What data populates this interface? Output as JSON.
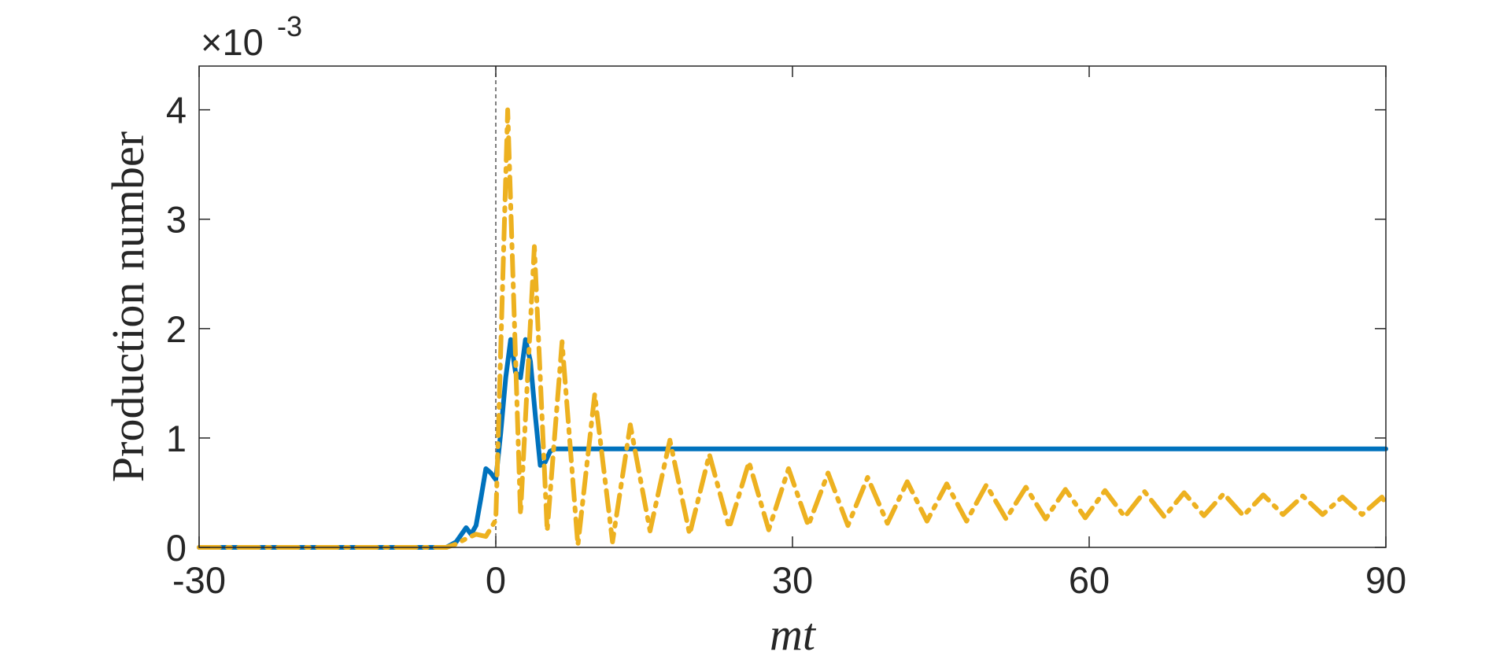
{
  "chart_data": {
    "type": "line",
    "xlabel": "mt",
    "ylabel": "Production number",
    "y_exponent_label": "×10",
    "y_exponent_power": "-3",
    "xlim": [
      -30,
      90
    ],
    "ylim": [
      0,
      4.4
    ],
    "x_ticks": [
      -30,
      0,
      30,
      60,
      90
    ],
    "x_tick_labels": [
      "-30",
      "0",
      "30",
      "60",
      "90"
    ],
    "y_ticks": [
      0,
      1,
      2,
      3,
      4
    ],
    "y_tick_labels": [
      "0",
      "1",
      "2",
      "3",
      "4"
    ],
    "y_scale_factor": 0.001,
    "grid": false,
    "vertical_reference_line_x": 0,
    "series": [
      {
        "color": "#0072BD",
        "style": "solid",
        "x": [
          -30,
          -5,
          -4,
          -3,
          -2.5,
          -2,
          -1.5,
          -1,
          -0.5,
          0,
          0.5,
          1,
          1.5,
          2,
          2.5,
          3,
          3.5,
          4,
          4.5,
          5,
          5.5,
          6,
          7,
          90
        ],
        "values": [
          0,
          0,
          0.05,
          0.18,
          0.12,
          0.2,
          0.45,
          0.72,
          0.68,
          0.62,
          1.05,
          1.55,
          1.9,
          1.6,
          1.55,
          1.9,
          1.7,
          1.2,
          0.75,
          0.78,
          0.88,
          0.9,
          0.9,
          0.9
        ]
      },
      {
        "color": "#EDB120",
        "style": "dash-dot",
        "x": [
          -30,
          -5,
          -4,
          -3,
          -2,
          -1,
          0,
          1.2,
          2.5,
          3.9,
          5.2,
          6.7,
          8.3,
          10,
          11.8,
          13.6,
          15.6,
          17.6,
          19.6,
          21.6,
          23.6,
          25.6,
          27.6,
          29.6,
          31.6,
          33.6,
          35.6,
          37.6,
          39.6,
          41.6,
          43.6,
          45.6,
          47.6,
          49.6,
          51.6,
          53.6,
          55.6,
          57.6,
          59.6,
          61.6,
          63.6,
          65.6,
          67.6,
          69.6,
          71.6,
          73.6,
          75.6,
          77.6,
          79.6,
          81.6,
          83.6,
          85.6,
          87.6,
          89.6,
          90
        ],
        "values": [
          0,
          0,
          0.03,
          0.08,
          0.12,
          0.1,
          0.25,
          4.0,
          0.3,
          2.75,
          0.15,
          1.88,
          0.02,
          1.4,
          0.05,
          1.12,
          0.15,
          0.98,
          0.12,
          0.85,
          0.18,
          0.78,
          0.16,
          0.72,
          0.2,
          0.68,
          0.2,
          0.64,
          0.22,
          0.6,
          0.24,
          0.58,
          0.24,
          0.57,
          0.26,
          0.55,
          0.26,
          0.53,
          0.27,
          0.52,
          0.28,
          0.51,
          0.28,
          0.5,
          0.29,
          0.49,
          0.29,
          0.48,
          0.3,
          0.47,
          0.3,
          0.46,
          0.3,
          0.46,
          0.4
        ]
      }
    ]
  }
}
